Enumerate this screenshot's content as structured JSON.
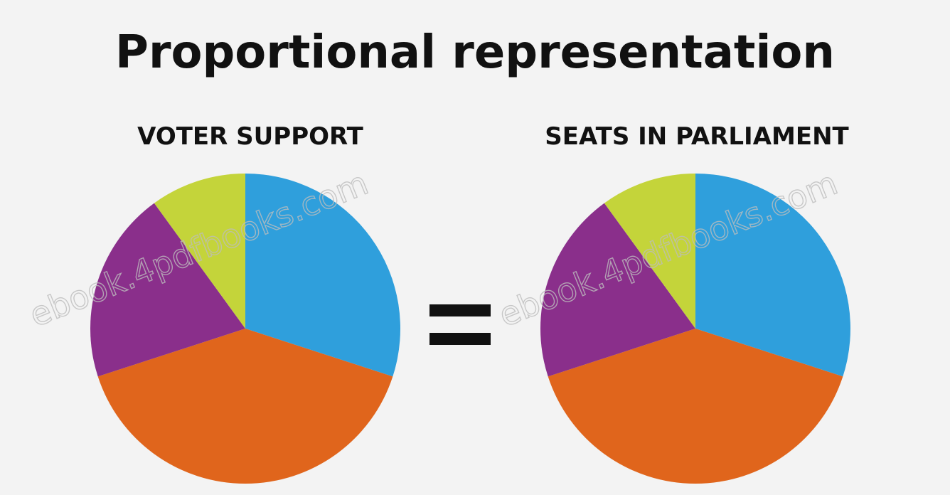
{
  "title": "Proportional representation",
  "watermark": "ebook.4pdfbooks.com",
  "chart_data": [
    {
      "type": "pie",
      "title": "VOTER SUPPORT",
      "values": [
        30,
        40,
        20,
        10
      ],
      "colors": [
        "#2f9fdc",
        "#e0651c",
        "#8a2f8b",
        "#c4d43a"
      ]
    },
    {
      "type": "pie",
      "title": "SEATS IN PARLIAMENT",
      "values": [
        30,
        40,
        20,
        10
      ],
      "colors": [
        "#2f9fdc",
        "#e0651c",
        "#8a2f8b",
        "#c4d43a"
      ]
    }
  ]
}
